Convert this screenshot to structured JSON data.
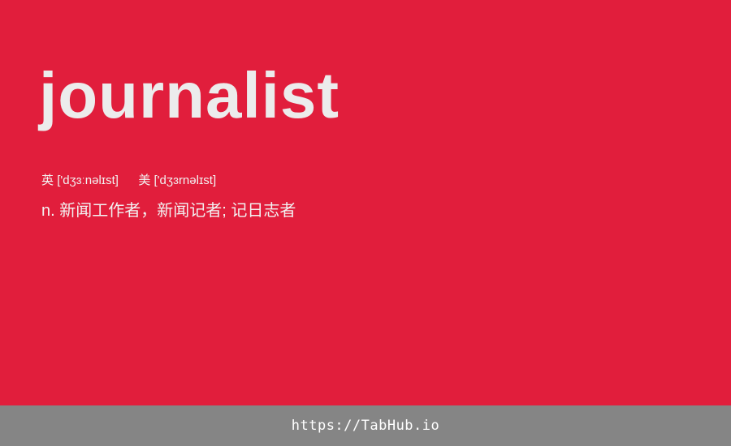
{
  "entry": {
    "word": "journalist",
    "phonetic_uk_label": "英",
    "phonetic_uk": "['dʒɜːnəlɪst]",
    "phonetic_us_label": "美",
    "phonetic_us": "['dʒɜrnəlɪst]",
    "definition": "n. 新闻工作者，新闻记者; 记日志者"
  },
  "footer": {
    "link": "https://TabHub.io"
  },
  "colors": {
    "background": "#e11e3c",
    "footer_background": "#858585",
    "word_text": "#ececec",
    "body_text": "#f2f2f2"
  }
}
